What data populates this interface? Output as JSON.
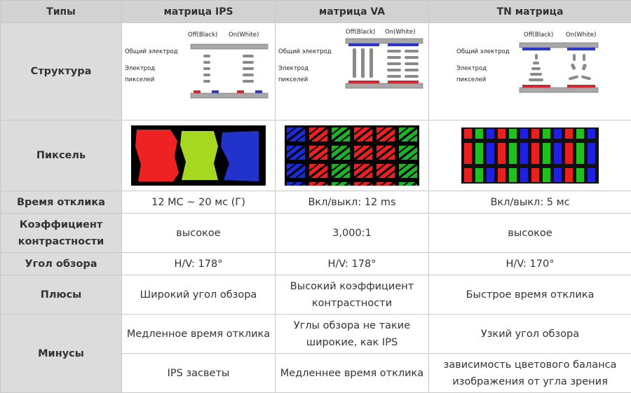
{
  "table": {
    "headers": [
      "Типы",
      "матрица IPS",
      "матрица VA",
      "TN матрица"
    ],
    "rows": {
      "structure": "Структура",
      "pixel": "Пиксель",
      "response": {
        "label": "Время отклика",
        "ips": "12 МС ~ 20 мс (Г)",
        "va": "Вкл/выкл: 12 ms",
        "tn": "Вкл/выкл: 5 мс"
      },
      "contrast": {
        "label": "Коэффициент контрастности",
        "ips": "высокое",
        "va": "3,000:1",
        "tn": "высокое"
      },
      "angle": {
        "label": "Угол обзора",
        "ips": "H/V: 178°",
        "va": "H/V: 178°",
        "tn": "H/V: 170°"
      },
      "pros": {
        "label": "Плюсы",
        "ips": "Широкий угол обзора",
        "va": "Высокий коэффициент контрастности",
        "tn": "Быстрое время отклика"
      },
      "cons": {
        "label": "Минусы",
        "row1": {
          "ips": "Медленное время отклика",
          "va": "Углы обзора не такие широкие, как IPS",
          "tn": "Узкий угол обзора"
        },
        "row2": {
          "ips": "IPS засветы",
          "va": "Медленнее время отклика",
          "tn": "зависимость цветового баланса изображения от угла зрения"
        }
      }
    }
  },
  "diagram": {
    "off_label": "Off(Black)",
    "on_label": "On(White)",
    "common_electrode": "Общий электрод",
    "pixel_electrode_line1": "Электрод",
    "pixel_electrode_line2": "пикселей"
  },
  "colors": {
    "header_bg": "#d2d2d2",
    "rowhead_bg": "#dcdcdc",
    "electrode_red": "#e0202a",
    "electrode_blue": "#2a38c8",
    "plate_gray": "#9e9e9e"
  }
}
